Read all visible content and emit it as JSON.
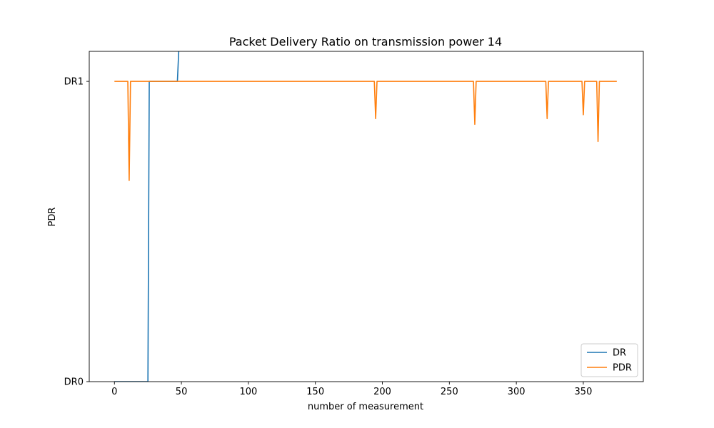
{
  "chart_data": {
    "type": "line",
    "title": "Packet Delivery Ratio on transmission power 14",
    "xlabel": "number of measurement",
    "ylabel": "PDR",
    "x_ticks": [
      0,
      50,
      100,
      150,
      200,
      250,
      300,
      350
    ],
    "x_tick_labels": [
      "0",
      "50",
      "100",
      "150",
      "200",
      "250",
      "300",
      "350"
    ],
    "y_ticks": [
      0,
      1
    ],
    "y_tick_labels": [
      "DR0",
      "DR1"
    ],
    "xlim": [
      -18.8,
      394.8
    ],
    "ylim": [
      0,
      1.1
    ],
    "grid": false,
    "legend_position": "lower-right",
    "series": [
      {
        "name": "DR",
        "color": "#1f77b4",
        "points": [
          [
            0,
            0
          ],
          [
            25,
            0
          ],
          [
            26,
            1
          ],
          [
            47,
            1
          ],
          [
            48,
            1.1
          ]
        ]
      },
      {
        "name": "PDR",
        "color": "#ff7f0e",
        "points": [
          [
            0,
            1
          ],
          [
            10,
            1
          ],
          [
            11,
            0.67
          ],
          [
            12,
            1
          ],
          [
            194,
            1
          ],
          [
            195,
            0.876
          ],
          [
            196,
            1
          ],
          [
            268,
            1
          ],
          [
            269,
            0.857
          ],
          [
            270,
            1
          ],
          [
            322,
            1
          ],
          [
            323,
            0.876
          ],
          [
            324,
            1
          ],
          [
            349,
            1
          ],
          [
            350,
            0.889
          ],
          [
            351,
            1
          ],
          [
            360,
            1
          ],
          [
            361,
            0.8
          ],
          [
            362,
            1
          ],
          [
            375,
            1
          ]
        ]
      }
    ]
  }
}
